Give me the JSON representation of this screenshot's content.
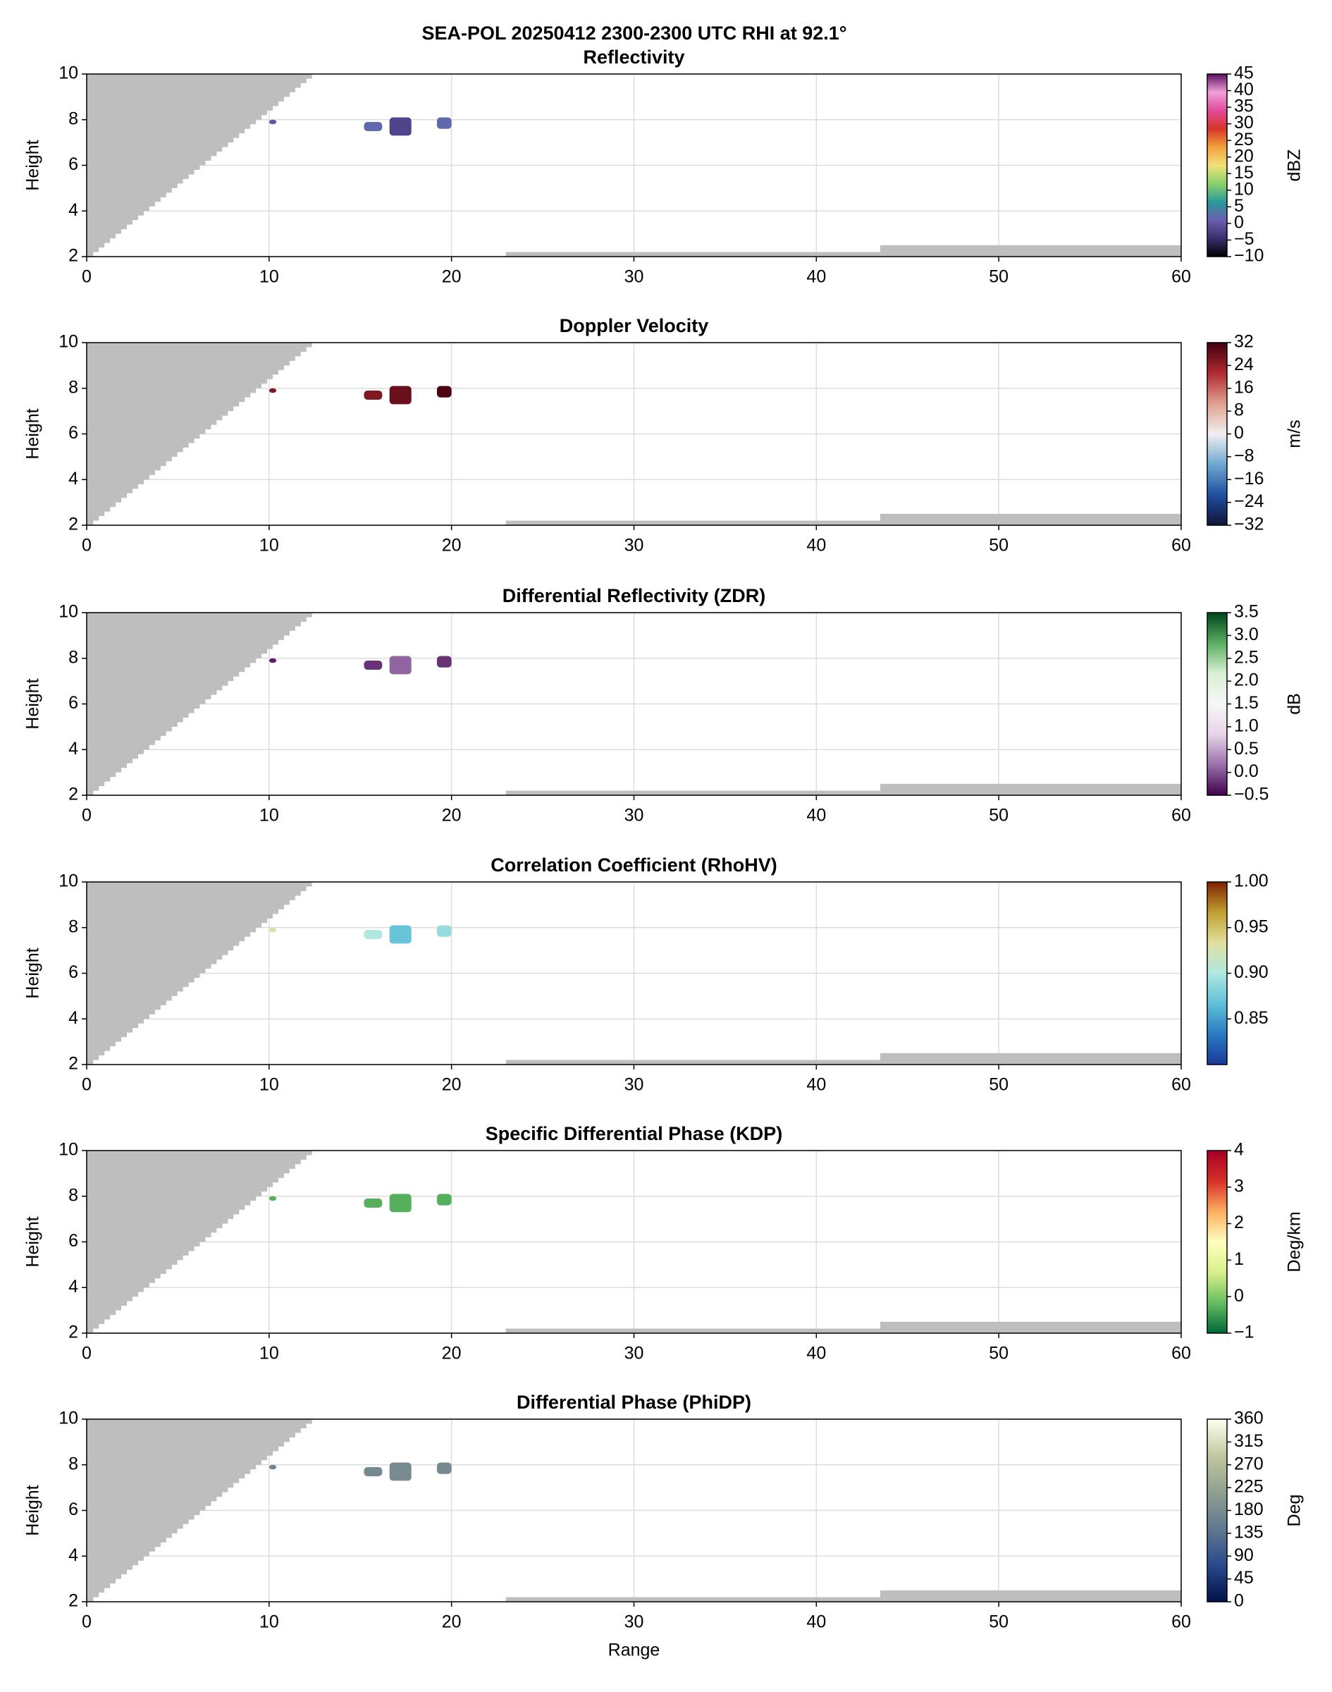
{
  "title": "SEA-POL 20250412 2300-2300 UTC RHI at 92.1°",
  "chart_data": [
    {
      "type": "rhi",
      "title": "Reflectivity",
      "y_label": "Height",
      "xlim": [
        0,
        60
      ],
      "ylim": [
        2,
        10
      ],
      "xticks": [
        0,
        10,
        20,
        30,
        40,
        50,
        60
      ],
      "yticks": [
        2,
        4,
        6,
        8,
        10
      ],
      "grid": true,
      "echoes": [
        {
          "x": [
            10,
            10.4
          ],
          "y": [
            7.8,
            8
          ],
          "value": 0
        },
        {
          "x": [
            15.2,
            16.2
          ],
          "y": [
            7.5,
            7.9
          ],
          "value": 2
        },
        {
          "x": [
            16.6,
            17.8
          ],
          "y": [
            7.3,
            8.1
          ],
          "value": -2
        },
        {
          "x": [
            19.2,
            20
          ],
          "y": [
            7.6,
            8.1
          ],
          "value": 2
        }
      ],
      "colorbar": {
        "label": "dBZ",
        "lim": [
          -10,
          45
        ],
        "ticks": [
          {
            "value": -10,
            "label": "−10"
          },
          {
            "value": -5,
            "label": "−5"
          },
          0,
          5,
          10,
          15,
          20,
          25,
          30,
          35,
          40,
          45
        ],
        "colors": [
          "#000000",
          "#3b2e6e",
          "#6a5fb0",
          "#2a9a9a",
          "#8bd16a",
          "#f2e07a",
          "#f2a13a",
          "#d8362a",
          "#e04a9a",
          "#f0a0d8",
          "#5a1060"
        ]
      }
    },
    {
      "type": "rhi",
      "title": "Doppler Velocity",
      "y_label": "Height",
      "xlim": [
        0,
        60
      ],
      "ylim": [
        2,
        10
      ],
      "xticks": [
        0,
        10,
        20,
        30,
        40,
        50,
        60
      ],
      "yticks": [
        2,
        4,
        6,
        8,
        10
      ],
      "grid": true,
      "echoes": [
        {
          "x": [
            10,
            10.4
          ],
          "y": [
            7.8,
            8
          ],
          "value": 26
        },
        {
          "x": [
            15.2,
            16.2
          ],
          "y": [
            7.5,
            7.9
          ],
          "value": 26
        },
        {
          "x": [
            16.6,
            17.8
          ],
          "y": [
            7.3,
            8.1
          ],
          "value": 28
        },
        {
          "x": [
            19.2,
            20
          ],
          "y": [
            7.6,
            8.1
          ],
          "value": 31
        }
      ],
      "colorbar": {
        "label": "m/s",
        "lim": [
          -32,
          32
        ],
        "ticks": [
          {
            "value": -32,
            "label": "−32"
          },
          {
            "value": -24,
            "label": "−24"
          },
          {
            "value": -16,
            "label": "−16"
          },
          {
            "value": -8,
            "label": "−8"
          },
          0,
          8,
          16,
          24,
          32
        ],
        "colors": [
          "#101535",
          "#1f4fa0",
          "#6fa8d0",
          "#f0f0f0",
          "#e0a090",
          "#b02a30",
          "#400010"
        ]
      }
    },
    {
      "type": "rhi",
      "title": "Differential Reflectivity (ZDR)",
      "y_label": "Height",
      "xlim": [
        0,
        60
      ],
      "ylim": [
        2,
        10
      ],
      "xticks": [
        0,
        10,
        20,
        30,
        40,
        50,
        60
      ],
      "yticks": [
        2,
        4,
        6,
        8,
        10
      ],
      "grid": true,
      "echoes": [
        {
          "x": [
            10,
            10.4
          ],
          "y": [
            7.8,
            8
          ],
          "value": -0.3
        },
        {
          "x": [
            15.2,
            16.2
          ],
          "y": [
            7.5,
            7.9
          ],
          "value": -0.2
        },
        {
          "x": [
            16.6,
            17.8
          ],
          "y": [
            7.3,
            8.1
          ],
          "value": 0.1
        },
        {
          "x": [
            19.2,
            20
          ],
          "y": [
            7.6,
            8.1
          ],
          "value": -0.2
        }
      ],
      "colorbar": {
        "label": "dB",
        "lim": [
          -0.5,
          3.5
        ],
        "ticks": [
          {
            "value": -0.5,
            "label": "−0.5"
          },
          {
            "value": 0,
            "label": "0.0"
          },
          0.5,
          {
            "value": 1,
            "label": "1.0"
          },
          1.5,
          {
            "value": 2,
            "label": "2.0"
          },
          2.5,
          {
            "value": 3,
            "label": "3.0"
          },
          3.5
        ],
        "colors": [
          "#40004b",
          "#9970ab",
          "#e7d4e8",
          "#f7f7f7",
          "#d9f0d3",
          "#5aae61",
          "#00441b"
        ]
      }
    },
    {
      "type": "rhi",
      "title": "Correlation Coefficient (RhoHV)",
      "y_label": "Height",
      "xlim": [
        0,
        60
      ],
      "ylim": [
        2,
        10
      ],
      "xticks": [
        0,
        10,
        20,
        30,
        40,
        50,
        60
      ],
      "yticks": [
        2,
        4,
        6,
        8,
        10
      ],
      "grid": true,
      "echoes": [
        {
          "x": [
            10,
            10.4
          ],
          "y": [
            7.8,
            8
          ],
          "value": 0.93
        },
        {
          "x": [
            15.2,
            16.2
          ],
          "y": [
            7.5,
            7.9
          ],
          "value": 0.9
        },
        {
          "x": [
            16.6,
            17.8
          ],
          "y": [
            7.3,
            8.1
          ],
          "value": 0.87
        },
        {
          "x": [
            19.2,
            20
          ],
          "y": [
            7.6,
            8.1
          ],
          "value": 0.89
        }
      ],
      "colorbar": {
        "label": "",
        "lim": [
          0.8,
          1
        ],
        "ticks": [
          0.85,
          {
            "value": 0.9,
            "label": "0.90"
          },
          0.95,
          {
            "value": 1,
            "label": "1.00"
          }
        ],
        "colors": [
          "#1a3a9a",
          "#2a7ac0",
          "#60c0d8",
          "#b0e8e0",
          "#e0e0a0",
          "#c0a030",
          "#802000"
        ]
      }
    },
    {
      "type": "rhi",
      "title": "Specific Differential Phase (KDP)",
      "y_label": "Height",
      "xlim": [
        0,
        60
      ],
      "ylim": [
        2,
        10
      ],
      "xticks": [
        0,
        10,
        20,
        30,
        40,
        50,
        60
      ],
      "yticks": [
        2,
        4,
        6,
        8,
        10
      ],
      "grid": true,
      "echoes": [
        {
          "x": [
            10,
            10.4
          ],
          "y": [
            7.8,
            8
          ],
          "value": -0.3
        },
        {
          "x": [
            15.2,
            16.2
          ],
          "y": [
            7.5,
            7.9
          ],
          "value": -0.3
        },
        {
          "x": [
            16.6,
            17.8
          ],
          "y": [
            7.3,
            8.1
          ],
          "value": -0.3
        },
        {
          "x": [
            19.2,
            20
          ],
          "y": [
            7.6,
            8.1
          ],
          "value": -0.3
        }
      ],
      "colorbar": {
        "label": "Deg/km",
        "lim": [
          -1,
          4
        ],
        "ticks": [
          {
            "value": -1,
            "label": "−1"
          },
          0,
          1,
          2,
          3,
          4
        ],
        "colors": [
          "#006837",
          "#66bd63",
          "#d9ef8b",
          "#ffffbf",
          "#fdae61",
          "#d73027",
          "#a50026"
        ]
      }
    },
    {
      "type": "rhi",
      "title": "Differential Phase (PhiDP)",
      "y_label": "Height",
      "x_label": "Range",
      "xlim": [
        0,
        60
      ],
      "ylim": [
        2,
        10
      ],
      "xticks": [
        0,
        10,
        20,
        30,
        40,
        50,
        60
      ],
      "yticks": [
        2,
        4,
        6,
        8,
        10
      ],
      "grid": true,
      "echoes": [
        {
          "x": [
            10,
            10.4
          ],
          "y": [
            7.8,
            8
          ],
          "value": 170
        },
        {
          "x": [
            15.2,
            16.2
          ],
          "y": [
            7.5,
            7.9
          ],
          "value": 175
        },
        {
          "x": [
            16.6,
            17.8
          ],
          "y": [
            7.3,
            8.1
          ],
          "value": 180
        },
        {
          "x": [
            19.2,
            20
          ],
          "y": [
            7.6,
            8.1
          ],
          "value": 175
        }
      ],
      "colorbar": {
        "label": "Deg",
        "lim": [
          0,
          360
        ],
        "ticks": [
          0,
          45,
          90,
          135,
          180,
          225,
          270,
          315,
          360
        ],
        "colors": [
          "#00104a",
          "#2a4a8a",
          "#607890",
          "#90a090",
          "#c0c8a0",
          "#fffff0"
        ]
      }
    }
  ]
}
